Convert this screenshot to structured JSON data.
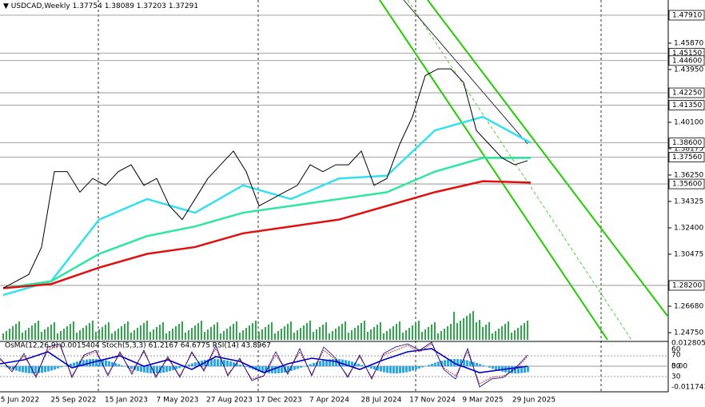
{
  "header": {
    "symbol": "USDCAD,Weekly",
    "ohlc": "1.37754 1.38089 1.37203 1.37291"
  },
  "price_axis": {
    "ylim": [
      1.2423,
      1.4902
    ],
    "ticks": [
      {
        "value": 1.4587,
        "label": "1.45870"
      },
      {
        "value": 1.4395,
        "label": "1.43950"
      },
      {
        "value": 1.401,
        "label": "1.40100"
      },
      {
        "value": 1.38175,
        "label": "1.38175"
      },
      {
        "value": 1.3625,
        "label": "1.36250"
      },
      {
        "value": 1.34325,
        "label": "1.34325"
      },
      {
        "value": 1.324,
        "label": "1.32400"
      },
      {
        "value": 1.30475,
        "label": "1.30475"
      },
      {
        "value": 1.2668,
        "label": "1.26680"
      },
      {
        "value": 1.2475,
        "label": "1.24750"
      }
    ],
    "levels": [
      {
        "value": 1.4791,
        "label": "1.47910"
      },
      {
        "value": 1.4515,
        "label": "1.45150"
      },
      {
        "value": 1.446,
        "label": "1.44600"
      },
      {
        "value": 1.4225,
        "label": "1.42250"
      },
      {
        "value": 1.4135,
        "label": "1.41350"
      },
      {
        "value": 1.386,
        "label": "1.38600"
      },
      {
        "value": 1.3756,
        "label": "1.37560"
      },
      {
        "value": 1.356,
        "label": "1.35600"
      },
      {
        "value": 1.282,
        "label": "1.28200"
      }
    ]
  },
  "dates": [
    "5 Jun 2022",
    "25 Sep 2022",
    "15 Jan 2023",
    "7 May 2023",
    "27 Aug 2023",
    "17 Dec 2023",
    "7 Apr 2024",
    "28 Jul 2024",
    "17 Nov 2024",
    "9 Mar 2025",
    "29 Jun 2025"
  ],
  "price": {
    "color": "#000000",
    "values": [
      1.28,
      1.285,
      1.29,
      1.31,
      1.365,
      1.365,
      1.35,
      1.36,
      1.355,
      1.365,
      1.37,
      1.355,
      1.36,
      1.34,
      1.33,
      1.345,
      1.36,
      1.37,
      1.38,
      1.365,
      1.34,
      1.345,
      1.35,
      1.355,
      1.37,
      1.365,
      1.37,
      1.37,
      1.38,
      1.355,
      1.36,
      1.385,
      1.405,
      1.435,
      1.44,
      1.44,
      1.43,
      1.395,
      1.385,
      1.375,
      1.37,
      1.373
    ]
  },
  "moving_averages": [
    {
      "color": "#33e0ee",
      "values": [
        1.275,
        1.285,
        1.33,
        1.345,
        1.335,
        1.355,
        1.345,
        1.36,
        1.362,
        1.395,
        1.405,
        1.386
      ]
    },
    {
      "color": "#2ee6a0",
      "values": [
        1.28,
        1.285,
        1.305,
        1.318,
        1.325,
        1.335,
        1.34,
        1.345,
        1.35,
        1.365,
        1.375,
        1.375
      ]
    },
    {
      "color": "#e01010",
      "values": [
        1.28,
        1.283,
        1.295,
        1.305,
        1.31,
        1.32,
        1.325,
        1.33,
        1.34,
        1.35,
        1.358,
        1.357
      ]
    }
  ],
  "indicator": {
    "label": "OsMA(12,26,9) 0.0015404  Stoch(5,3,3) 61.2167 64.6775  RSI(14) 43.8967",
    "scale": [
      "0.012805",
      "60",
      "70",
      "50",
      "30",
      "0.00",
      "-0.011743"
    ]
  }
}
